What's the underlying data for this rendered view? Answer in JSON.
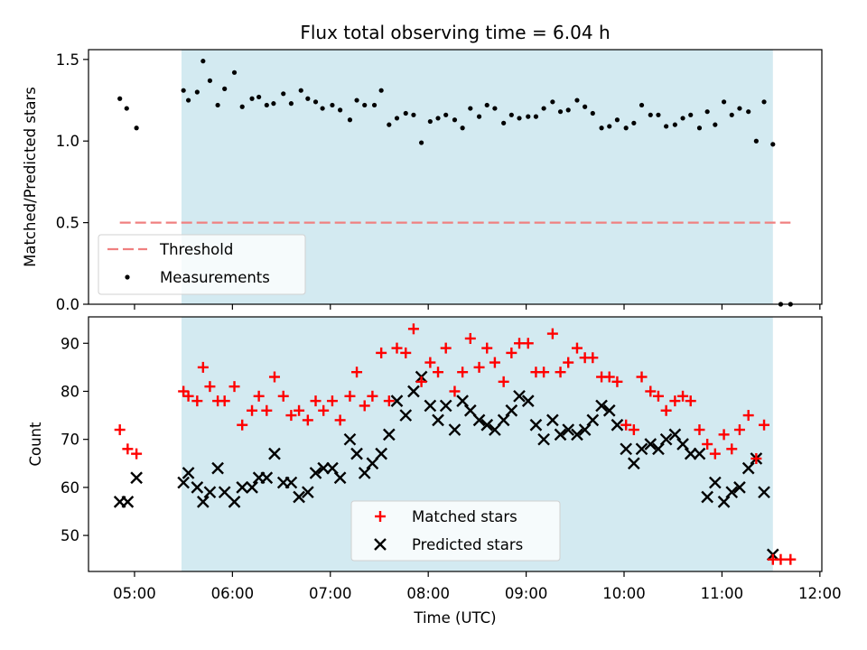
{
  "chart_data": {
    "title": "Flux total observing time = 6.04 h",
    "xlabel": "Time (UTC)",
    "x_ticks": [
      "05:00",
      "06:00",
      "07:00",
      "08:00",
      "09:00",
      "10:00",
      "11:00",
      "12:00"
    ],
    "x_tick_hours": [
      5,
      6,
      7,
      8,
      9,
      10,
      11,
      12
    ],
    "xlim_hours": [
      4.53,
      12.02
    ],
    "shaded_span_hours": [
      5.48,
      11.52
    ],
    "shade_color": "#d3eaf1",
    "panels": [
      {
        "type": "scatter",
        "ylabel": "Matched/Predicted stars",
        "ylim": [
          0,
          1.56
        ],
        "y_ticks": [
          0.0,
          0.5,
          1.0,
          1.5
        ],
        "y_tick_labels": [
          "0.0",
          "0.5",
          "1.0",
          "1.5"
        ],
        "legend": {
          "position": "lower-left",
          "entries": [
            "Threshold",
            "Measurements"
          ]
        },
        "threshold": {
          "name": "Threshold",
          "value": 0.5,
          "x_range_hours": [
            4.85,
            11.7
          ],
          "color": "#f08080"
        },
        "series": [
          {
            "name": "Measurements",
            "marker": "dot",
            "color": "#000000",
            "x_hours": [
              4.85,
              4.92,
              5.02,
              5.5,
              5.55,
              5.64,
              5.7,
              5.77,
              5.85,
              5.92,
              6.02,
              6.1,
              6.2,
              6.27,
              6.35,
              6.42,
              6.52,
              6.6,
              6.7,
              6.77,
              6.85,
              6.92,
              7.02,
              7.1,
              7.2,
              7.27,
              7.35,
              7.45,
              7.52,
              7.6,
              7.68,
              7.77,
              7.85,
              7.93,
              8.02,
              8.1,
              8.18,
              8.27,
              8.35,
              8.43,
              8.52,
              8.6,
              8.68,
              8.77,
              8.85,
              8.93,
              9.02,
              9.1,
              9.18,
              9.27,
              9.35,
              9.43,
              9.52,
              9.6,
              9.68,
              9.77,
              9.85,
              9.93,
              10.02,
              10.1,
              10.18,
              10.27,
              10.35,
              10.43,
              10.52,
              10.6,
              10.68,
              10.77,
              10.85,
              10.93,
              11.02,
              11.1,
              11.18,
              11.27,
              11.35,
              11.43,
              11.52,
              11.6,
              11.7
            ],
            "y": [
              1.26,
              1.2,
              1.08,
              1.31,
              1.25,
              1.3,
              1.49,
              1.37,
              1.22,
              1.32,
              1.42,
              1.21,
              1.26,
              1.27,
              1.22,
              1.23,
              1.29,
              1.23,
              1.31,
              1.26,
              1.24,
              1.2,
              1.22,
              1.19,
              1.13,
              1.25,
              1.22,
              1.22,
              1.31,
              1.1,
              1.14,
              1.17,
              1.16,
              0.99,
              1.12,
              1.14,
              1.16,
              1.13,
              1.08,
              1.2,
              1.15,
              1.22,
              1.2,
              1.11,
              1.16,
              1.14,
              1.15,
              1.15,
              1.2,
              1.24,
              1.18,
              1.19,
              1.25,
              1.21,
              1.17,
              1.08,
              1.09,
              1.13,
              1.08,
              1.11,
              1.22,
              1.16,
              1.16,
              1.09,
              1.1,
              1.14,
              1.16,
              1.08,
              1.18,
              1.1,
              1.24,
              1.16,
              1.2,
              1.18,
              1.0,
              1.24,
              0.98,
              0.0,
              0.0
            ]
          }
        ]
      },
      {
        "type": "scatter",
        "ylabel": "Count",
        "ylim": [
          42.5,
          95.5
        ],
        "y_ticks": [
          50,
          60,
          70,
          80,
          90
        ],
        "y_tick_labels": [
          "50",
          "60",
          "70",
          "80",
          "90"
        ],
        "legend": {
          "position": "lower-center",
          "entries": [
            "Matched stars",
            "Predicted stars"
          ]
        },
        "series": [
          {
            "name": "Matched stars",
            "marker": "plus",
            "color": "#ff0000",
            "x_hours": [
              4.85,
              4.93,
              5.02,
              5.5,
              5.55,
              5.64,
              5.7,
              5.77,
              5.85,
              5.92,
              6.02,
              6.1,
              6.2,
              6.27,
              6.35,
              6.43,
              6.52,
              6.6,
              6.68,
              6.77,
              6.85,
              6.93,
              7.02,
              7.1,
              7.2,
              7.27,
              7.35,
              7.43,
              7.52,
              7.6,
              7.68,
              7.77,
              7.85,
              7.93,
              8.02,
              8.1,
              8.18,
              8.27,
              8.35,
              8.43,
              8.52,
              8.6,
              8.68,
              8.77,
              8.85,
              8.93,
              9.02,
              9.1,
              9.18,
              9.27,
              9.35,
              9.43,
              9.52,
              9.6,
              9.68,
              9.77,
              9.85,
              9.93,
              10.02,
              10.1,
              10.18,
              10.27,
              10.35,
              10.43,
              10.52,
              10.6,
              10.68,
              10.77,
              10.85,
              10.93,
              11.02,
              11.1,
              11.18,
              11.27,
              11.35,
              11.43,
              11.52,
              11.6,
              11.7
            ],
            "y": [
              72,
              68,
              67,
              80,
              79,
              78,
              85,
              81,
              78,
              78,
              81,
              73,
              76,
              79,
              76,
              83,
              79,
              75,
              76,
              74,
              78,
              76,
              78,
              74,
              79,
              84,
              77,
              79,
              88,
              78,
              89,
              88,
              93,
              82,
              86,
              84,
              89,
              80,
              84,
              91,
              85,
              89,
              86,
              82,
              88,
              90,
              90,
              84,
              84,
              92,
              84,
              86,
              89,
              87,
              87,
              83,
              83,
              82,
              73,
              72,
              83,
              80,
              79,
              76,
              78,
              79,
              78,
              72,
              69,
              67,
              71,
              68,
              72,
              75,
              66,
              73,
              45,
              45,
              45
            ]
          },
          {
            "name": "Predicted stars",
            "marker": "x",
            "color": "#000000",
            "x_hours": [
              4.85,
              4.93,
              5.02,
              5.5,
              5.55,
              5.64,
              5.7,
              5.77,
              5.85,
              5.92,
              6.02,
              6.1,
              6.2,
              6.27,
              6.35,
              6.43,
              6.52,
              6.6,
              6.68,
              6.77,
              6.85,
              6.93,
              7.02,
              7.1,
              7.2,
              7.27,
              7.35,
              7.43,
              7.52,
              7.6,
              7.68,
              7.77,
              7.85,
              7.93,
              8.02,
              8.1,
              8.18,
              8.27,
              8.35,
              8.43,
              8.52,
              8.6,
              8.68,
              8.77,
              8.85,
              8.93,
              9.02,
              9.1,
              9.18,
              9.27,
              9.35,
              9.43,
              9.52,
              9.6,
              9.68,
              9.77,
              9.85,
              9.93,
              10.02,
              10.1,
              10.18,
              10.27,
              10.35,
              10.43,
              10.52,
              10.6,
              10.68,
              10.77,
              10.85,
              10.93,
              11.02,
              11.1,
              11.18,
              11.27,
              11.35,
              11.43,
              11.52
            ],
            "y": [
              57,
              57,
              62,
              61,
              63,
              60,
              57,
              59,
              64,
              59,
              57,
              60,
              60,
              62,
              62,
              67,
              61,
              61,
              58,
              59,
              63,
              64,
              64,
              62,
              70,
              67,
              63,
              65,
              67,
              71,
              78,
              75,
              80,
              83,
              77,
              74,
              77,
              72,
              78,
              76,
              74,
              73,
              72,
              74,
              76,
              79,
              78,
              73,
              70,
              74,
              71,
              72,
              71,
              72,
              74,
              77,
              76,
              73,
              68,
              65,
              68,
              69,
              68,
              70,
              71,
              69,
              67,
              67,
              58,
              61,
              57,
              59,
              60,
              64,
              66,
              59,
              46
            ]
          }
        ]
      }
    ]
  }
}
